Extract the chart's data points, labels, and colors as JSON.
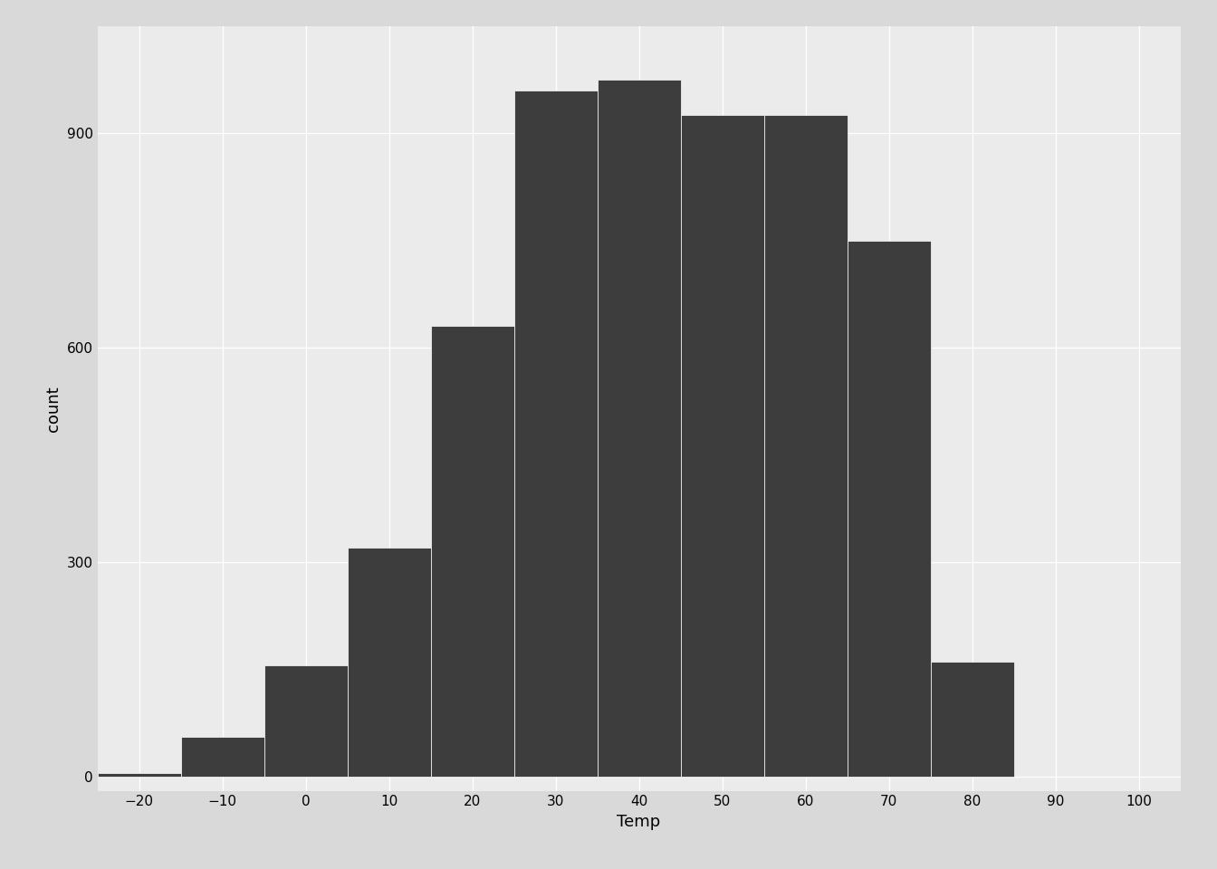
{
  "bin_centers": [
    -20,
    -10,
    0,
    10,
    20,
    30,
    40,
    50,
    60,
    70,
    80,
    90
  ],
  "bin_counts": [
    5,
    55,
    155,
    320,
    630,
    960,
    975,
    925,
    925,
    750,
    160,
    0
  ],
  "bin_width": 10,
  "bar_color": "#3d3d3d",
  "bar_edge_color": "white",
  "bar_linewidth": 0.5,
  "panel_background": "#ebebeb",
  "outer_background": "#d9d9d9",
  "grid_color": "white",
  "grid_linewidth": 1.0,
  "xlabel": "Temp",
  "ylabel": "count",
  "xlabel_fontsize": 13,
  "ylabel_fontsize": 13,
  "tick_fontsize": 11,
  "xlim": [
    -25,
    105
  ],
  "ylim": [
    -20,
    1050
  ],
  "xticks": [
    -20,
    -10,
    0,
    10,
    20,
    30,
    40,
    50,
    60,
    70,
    80,
    90,
    100
  ],
  "yticks": [
    0,
    300,
    600,
    900
  ]
}
